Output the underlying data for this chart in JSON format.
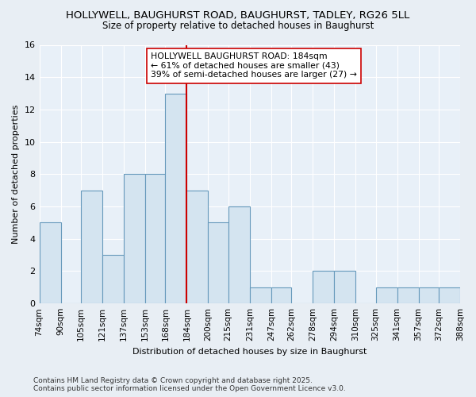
{
  "title1": "HOLLYWELL, BAUGHURST ROAD, BAUGHURST, TADLEY, RG26 5LL",
  "title2": "Size of property relative to detached houses in Baughurst",
  "xlabel": "Distribution of detached houses by size in Baughurst",
  "ylabel": "Number of detached properties",
  "bins": [
    74,
    90,
    105,
    121,
    137,
    153,
    168,
    184,
    200,
    215,
    231,
    247,
    262,
    278,
    294,
    310,
    325,
    341,
    357,
    372,
    388
  ],
  "counts": [
    5,
    0,
    7,
    3,
    8,
    8,
    13,
    7,
    5,
    6,
    1,
    1,
    0,
    2,
    2,
    0,
    1,
    1,
    1,
    1
  ],
  "bar_color": "#d4e4f0",
  "bar_edge_color": "#6699bb",
  "vline_x": 184,
  "vline_color": "#cc0000",
  "annotation_title": "HOLLYWELL BAUGHURST ROAD: 184sqm",
  "annotation_line1": "← 61% of detached houses are smaller (43)",
  "annotation_line2": "39% of semi-detached houses are larger (27) →",
  "annotation_box_facecolor": "#ffffff",
  "annotation_box_edgecolor": "#cc0000",
  "ylim": [
    0,
    16
  ],
  "yticks": [
    0,
    2,
    4,
    6,
    8,
    10,
    12,
    14,
    16
  ],
  "tick_labels": [
    "74sqm",
    "90sqm",
    "105sqm",
    "121sqm",
    "137sqm",
    "153sqm",
    "168sqm",
    "184sqm",
    "200sqm",
    "215sqm",
    "231sqm",
    "247sqm",
    "262sqm",
    "278sqm",
    "294sqm",
    "310sqm",
    "325sqm",
    "341sqm",
    "357sqm",
    "372sqm",
    "388sqm"
  ],
  "footer1": "Contains HM Land Registry data © Crown copyright and database right 2025.",
  "footer2": "Contains public sector information licensed under the Open Government Licence v3.0.",
  "bg_color": "#e8eef4",
  "plot_bg_color": "#e8f0f8",
  "grid_color": "#ffffff",
  "title_fontsize": 9.5,
  "subtitle_fontsize": 8.5,
  "axis_label_fontsize": 8,
  "tick_fontsize": 7.5,
  "footer_fontsize": 6.5
}
